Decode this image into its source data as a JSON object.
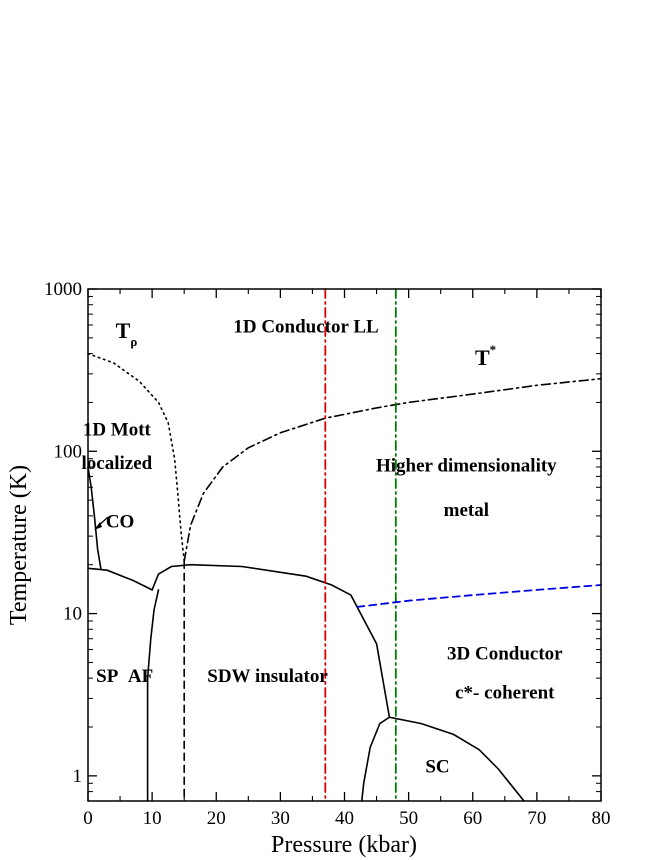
{
  "chart_data": {
    "type": "line",
    "xlabel": "Pressure (kbar)",
    "ylabel": "Temperature (K)",
    "xlim": [
      0,
      80
    ],
    "ylim": [
      0.7,
      1000
    ],
    "y_scale": "log",
    "x_ticks": [
      0,
      10,
      20,
      30,
      40,
      50,
      60,
      70,
      80
    ],
    "y_ticks": [
      1,
      10,
      100,
      1000
    ],
    "y_tick_labels": [
      "1",
      "10",
      "100",
      "1000"
    ],
    "grid": false,
    "colors": {
      "axis": "#000000",
      "red_line": "#e00000",
      "green_line": "#007a00",
      "blue_line": "#0000e0"
    },
    "series": [
      {
        "style": "dotted",
        "points": [
          [
            0,
            400
          ],
          [
            4,
            350
          ],
          [
            8,
            270
          ],
          [
            11,
            200
          ],
          [
            12.5,
            150
          ],
          [
            13.5,
            90
          ],
          [
            14,
            55
          ],
          [
            14.5,
            32
          ],
          [
            15,
            21
          ]
        ]
      },
      {
        "label": "T*",
        "style": "dashdot",
        "points": [
          [
            15,
            21
          ],
          [
            16,
            35
          ],
          [
            18,
            55
          ],
          [
            21,
            80
          ],
          [
            25,
            105
          ],
          [
            30,
            130
          ],
          [
            37,
            160
          ],
          [
            45,
            185
          ],
          [
            50,
            200
          ],
          [
            60,
            225
          ],
          [
            70,
            255
          ],
          [
            80,
            280
          ]
        ]
      },
      {
        "style": "solid",
        "points": [
          [
            0,
            19
          ],
          [
            3,
            18.5
          ],
          [
            7,
            16
          ],
          [
            10,
            14
          ]
        ]
      },
      {
        "style": "solid",
        "points": [
          [
            10,
            14
          ],
          [
            11,
            17.5
          ],
          [
            13,
            19.5
          ],
          [
            16,
            20
          ],
          [
            24,
            19.5
          ],
          [
            34,
            17
          ],
          [
            38,
            15
          ],
          [
            41,
            13
          ],
          [
            45,
            6.5
          ],
          [
            47,
            2.3
          ]
        ]
      },
      {
        "style": "solid",
        "points": [
          [
            9.3,
            0.7
          ],
          [
            9.3,
            4
          ],
          [
            9.8,
            7
          ],
          [
            10.3,
            10.5
          ],
          [
            11,
            14
          ]
        ]
      },
      {
        "style": "solid",
        "points": [
          [
            0,
            80
          ],
          [
            0.5,
            60
          ],
          [
            1,
            40
          ],
          [
            1.5,
            25
          ],
          [
            2,
            19
          ]
        ]
      },
      {
        "style": "dashed",
        "points": [
          [
            15,
            21
          ],
          [
            15,
            0.7
          ]
        ]
      },
      {
        "style": "solid",
        "points": [
          [
            42.7,
            0.7
          ],
          [
            43,
            0.9
          ],
          [
            44,
            1.5
          ],
          [
            45.5,
            2.1
          ],
          [
            47,
            2.3
          ],
          [
            52,
            2.1
          ],
          [
            57,
            1.8
          ],
          [
            61,
            1.45
          ],
          [
            64,
            1.1
          ],
          [
            68,
            0.7
          ]
        ]
      },
      {
        "style": "dashdot",
        "color": "#e00000",
        "points": [
          [
            37,
            1000
          ],
          [
            37,
            0.7
          ]
        ]
      },
      {
        "style": "dashdot",
        "color": "#007a00",
        "points": [
          [
            48,
            1000
          ],
          [
            48,
            0.7
          ]
        ]
      },
      {
        "style": "dashed",
        "color": "#0000e0",
        "points": [
          [
            42,
            11
          ],
          [
            50,
            12
          ],
          [
            60,
            13
          ],
          [
            70,
            14
          ],
          [
            80,
            15
          ]
        ]
      }
    ],
    "annotations": [
      {
        "text": "T",
        "sub": "ρ",
        "x": 6,
        "y": 500
      },
      {
        "text": "1D Conductor LL",
        "x": 34,
        "y": 540
      },
      {
        "text": "T",
        "sup": "*",
        "x": 62,
        "y": 340
      },
      {
        "text": "1D Mott",
        "x": 4.5,
        "y": 125
      },
      {
        "text": "localized",
        "x": 4.5,
        "y": 78
      },
      {
        "text": "Higher dimensionality",
        "x": 59,
        "y": 75
      },
      {
        "text": "metal",
        "x": 59,
        "y": 40
      },
      {
        "text": "CO",
        "x": 5,
        "y": 34
      },
      {
        "text": "SP",
        "x": 3,
        "y": 3.8
      },
      {
        "text": "AF",
        "x": 8.2,
        "y": 3.8
      },
      {
        "text": "SDW insulator",
        "x": 28,
        "y": 3.8
      },
      {
        "text": "3D Conductor",
        "x": 65,
        "y": 5.2
      },
      {
        "text": "c*- coherent",
        "x": 65,
        "y": 3.0
      },
      {
        "text": "SC",
        "x": 54.5,
        "y": 1.05
      }
    ]
  }
}
